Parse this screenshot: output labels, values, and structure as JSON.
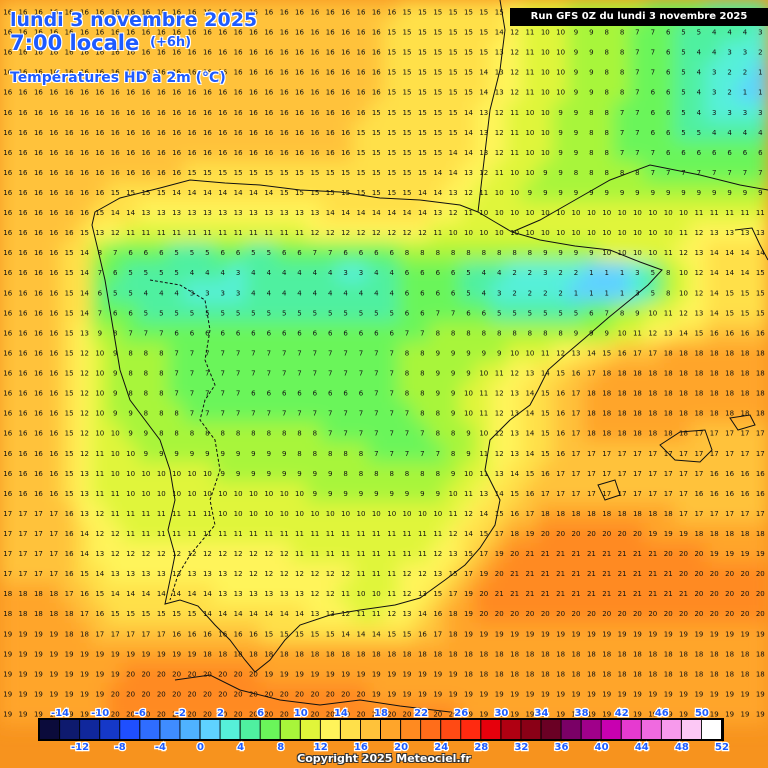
{
  "header": {
    "date": "lundi 3 novembre 2025",
    "time": "7:00 locale",
    "offset": "(+6h)",
    "parameter": "Températures HD à 2m (°C)",
    "run": "Run GFS 0Z du lundi 3 novembre 2025"
  },
  "legend": {
    "top_labels": [
      "-14",
      "-10",
      "-6",
      "-2",
      "2",
      "6",
      "10",
      "14",
      "18",
      "22",
      "26",
      "30",
      "34",
      "38",
      "42",
      "46",
      "50"
    ],
    "bottom_labels": [
      "-12",
      "-8",
      "-4",
      "0",
      "4",
      "8",
      "12",
      "16",
      "20",
      "24",
      "28",
      "32",
      "36",
      "40",
      "44",
      "48",
      "52"
    ],
    "colors": [
      "#0b0b3b",
      "#0e1a6e",
      "#10279c",
      "#1538c8",
      "#1f4fff",
      "#2f6dff",
      "#3f8cff",
      "#4fb2ff",
      "#5fd2ff",
      "#56f0d9",
      "#4ff0a0",
      "#6af55a",
      "#a8f53a",
      "#e0f53a",
      "#fff45a",
      "#ffe04a",
      "#ffc23a",
      "#ffa52a",
      "#ff8a20",
      "#ff6d1a",
      "#ff4a14",
      "#ff2a10",
      "#e6000c",
      "#b00012",
      "#8a0016",
      "#6a0024",
      "#7a0066",
      "#a0008a",
      "#c800b0",
      "#e63ad0",
      "#f06ae0",
      "#f79aec",
      "#fcc8f5",
      "#ffffff"
    ]
  },
  "map": {
    "rows": [
      "16 16 16 16 16 16 16 16 16 16 16 16 16 16 16 16 16 16 16 16 16 16 16 16 16 16 15 15 15 15 15 15 15 12 11 10 10 9 9 8 8 8 7 7 6 6 5 5 5 5",
      "16 16 16 16 16 16 16 16 16 16 16 16 16 16 16 16 16 16 16 16 16 16 16 16 16 15 15 15 15 15 15 15 14 12 11 10 10 9 9 8 8 7 7 6 5 5 4 4 4 3",
      "16 16 16 16 16 16 16 16 16 16 16 16 16 16 16 16 16 16 16 16 16 16 16 16 16 15 15 15 15 15 15 15 13 12 11 10 10 9 9 8 8 7 7 6 5 4 4 3 3 2",
      "16 16 16 16 16 16 16 16 16 16 16 16 16 16 16 16 16 16 16 16 16 16 16 16 16 15 15 15 15 15 15 14 13 12 11 10 10 9 9 8 8 7 7 6 5 4 3 2 2 1",
      "16 16 16 16 16 16 16 16 16 16 16 16 16 16 16 16 16 16 16 16 16 16 16 16 16 15 15 15 15 15 15 14 13 12 11 10 10 9 9 8 8 7 6 6 5 4 3 2 1 1",
      "16 16 16 16 16 16 16 16 16 16 16 16 16 16 16 16 16 16 16 16 16 16 16 16 15 15 15 15 15 15 14 13 12 11 10 10 9 9 8 8 7 7 6 6 5 4 3 3 3 3",
      "16 16 16 16 16 16 16 16 16 16 16 16 16 16 16 16 16 16 16 16 16 16 16 15 15 15 15 15 15 15 14 13 12 11 10 10 9 9 8 8 7 7 6 6 5 5 4 4 4 4",
      "16 16 16 16 16 16 16 16 16 16 16 16 16 16 16 16 16 16 16 16 16 16 16 15 15 15 15 15 15 14 14 13 12 11 10 10 9 9 8 8 7 7 7 6 6 6 6 6 6 6",
      "16 16 16 16 16 16 16 16 16 16 16 16 15 15 15 15 15 15 15 15 15 15 15 15 15 15 15 15 14 14 13 12 11 10 10 9 9 8 8 8 8 8 7 7 7 7 7 7 7 7",
      "16 16 16 16 16 16 16 15 15 15 15 14 14 14 14 14 14 14 15 15 15 15 15 15 15 15 15 14 14 13 12 11 10 10 9 9 9 9 9 9 9 9 9 9 9 9 9 9 9 9",
      "16 16 16 16 16 16 15 14 14 13 13 13 13 13 13 13 13 13 13 13 13 14 14 14 14 14 14 14 13 12 11 10 10 10 10 10 10 10 10 10 10 10 10 10 10 11 11 11 11 11",
      "16 16 16 16 16 15 13 12 11 11 11 11 11 11 11 11 11 11 11 11 12 12 12 12 12 12 12 12 11 10 10 10 10 10 10 10 10 10 10 10 10 10 10 10 11 12 13 13 13 13",
      "16 16 16 16 15 14 8 7 6 6 6 5 5 5 6 6 5 5 6 6 7 7 6 6 6 6 8 8 8 8 8 8 8 8 8 9 9 9 9 10 10 10 10 11 12 13 14 14 14 14",
      "16 16 16 16 15 14 7 6 5 5 5 5 4 4 4 3 4 4 4 4 4 4 3 3 4 4 6 6 6 6 5 4 4 2 2 3 2 2 1 1 1 3 5 8 10 12 14 14 14 15",
      "16 16 16 16 15 14 6 5 5 4 4 4 3 3 3 3 4 4 4 4 4 4 4 4 4 4 6 6 6 6 5 4 3 2 2 2 2 1 1 1 1 3 5 8 10 12 14 15 15 15",
      "16 16 16 16 15 14 7 6 6 5 5 5 5 5 5 5 5 5 5 5 5 5 5 5 5 5 6 6 7 7 6 6 5 5 5 5 5 5 6 7 8 9 10 11 12 13 14 15 15 15",
      "16 16 16 16 15 13 9 8 7 7 7 6 6 6 6 6 6 6 6 6 6 6 6 6 6 6 7 7 8 8 8 8 8 8 8 8 8 9 9 9 10 11 12 13 14 15 16 16 16 16",
      "16 16 16 16 15 12 10 9 8 8 8 7 7 7 7 7 7 7 7 7 7 7 7 7 7 7 8 8 9 9 9 9 9 10 10 11 12 13 14 15 16 17 17 18 18 18 18 18 18 18",
      "16 16 16 16 15 12 10 9 8 8 8 7 7 7 7 7 7 7 7 7 7 7 7 7 7 7 8 8 9 9 9 10 11 12 13 14 15 16 17 18 18 18 18 18 18 18 18 18 18 18",
      "16 16 16 16 15 12 10 9 8 8 8 7 7 7 7 7 6 6 6 6 6 6 6 6 7 7 8 8 9 9 10 11 12 13 14 15 16 17 18 18 18 18 18 18 18 18 18 18 18 18",
      "16 16 16 16 15 12 10 9 9 8 8 8 7 7 7 7 7 7 7 7 7 7 7 7 7 7 7 8 8 9 10 11 12 13 14 15 16 17 18 18 18 18 18 18 18 18 18 18 18 18",
      "16 16 16 16 15 12 10 10 9 9 8 8 8 8 8 8 8 8 8 8 8 7 7 7 7 7 7 7 8 8 9 10 12 13 14 15 16 17 18 18 18 18 18 18 18 17 17 17 17 17",
      "16 16 16 16 15 12 11 10 10 9 9 9 9 9 9 9 9 9 9 8 8 8 8 8 7 7 7 7 7 8 9 11 12 13 14 15 16 17 17 17 17 17 17 17 17 17 17 17 17 17",
      "16 16 16 16 15 13 11 10 10 10 10 10 10 10 9 9 9 9 9 9 9 9 8 8 8 8 8 8 8 9 10 11 13 14 15 16 17 17 17 17 17 17 17 17 17 17 16 16 16 16",
      "16 16 16 16 15 13 11 11 10 10 10 10 10 10 10 10 10 10 10 10 9 9 9 9 9 9 9 9 9 10 11 13 14 15 16 17 17 17 17 17 17 17 17 17 17 16 16 16 16 16",
      "17 17 17 17 16 13 12 11 11 11 11 11 11 11 10 10 10 10 10 10 10 10 10 10 10 10 10 10 10 11 12 14 15 16 17 18 18 18 18 18 18 18 18 18 17 17 17 17 17 17",
      "17 17 17 17 16 14 12 12 11 11 11 11 11 11 11 11 11 11 11 11 11 11 11 11 11 11 11 11 11 12 14 15 17 18 19 20 20 20 20 20 20 20 19 19 19 18 18 18 18 18",
      "17 17 17 17 16 14 13 12 12 12 12 12 12 12 12 12 12 12 12 11 11 11 11 11 11 11 11 11 12 13 15 17 19 20 21 21 21 21 21 21 21 21 21 20 20 20 19 19 19 19",
      "17 17 17 17 16 15 14 13 13 13 13 13 13 13 13 12 12 12 12 12 12 12 12 11 11 11 12 12 13 15 17 19 20 21 21 21 21 21 21 21 21 21 21 21 20 20 20 20 20 20",
      "18 18 18 18 17 16 15 14 14 14 14 14 14 14 13 13 13 13 13 13 12 12 11 10 10 11 12 13 15 17 19 20 21 21 21 21 21 21 21 21 21 21 21 21 21 20 20 20 20 20",
      "18 18 18 18 18 17 16 15 15 15 15 15 15 14 14 14 14 14 14 14 13 13 12 11 11 12 13 14 16 18 19 20 20 20 20 20 20 20 20 20 20 20 20 20 20 20 20 20 20 20",
      "19 19 19 19 18 18 17 17 17 17 17 16 16 16 16 16 16 15 15 15 15 15 14 14 14 15 15 16 17 18 19 19 19 19 19 19 19 19 19 19 19 19 19 19 19 19 19 19 19 19",
      "19 19 19 19 19 19 19 19 19 19 19 19 19 18 18 18 18 18 18 18 18 18 18 18 18 18 18 18 18 18 18 18 18 18 18 18 18 18 18 18 18 18 18 18 18 18 18 18 18 18",
      "19 19 19 19 19 19 19 19 20 20 20 20 20 20 20 20 20 19 19 19 19 19 19 19 19 19 19 19 19 19 18 18 18 18 18 18 18 18 18 18 18 18 18 18 18 18 18 18 18 18",
      "19 19 19 19 19 19 19 20 20 20 20 20 20 20 20 20 20 20 20 20 20 20 20 20 19 19 19 19 19 19 19 19 19 19 19 19 19 19 19 19 19 19 19 19 19 19 19 19 19 19",
      "19 19 19 19 19 19 19 20 20 20 20 20 20 20 20 20 20 20 20 20 20 20 20 20 20 20 20 20 20 20 19 19 19 19 19 19 19 19 19 19 19 19 19 19 19 19 19 19 19 19"
    ]
  },
  "copyright": "Copyright 2025 Meteociel.fr"
}
